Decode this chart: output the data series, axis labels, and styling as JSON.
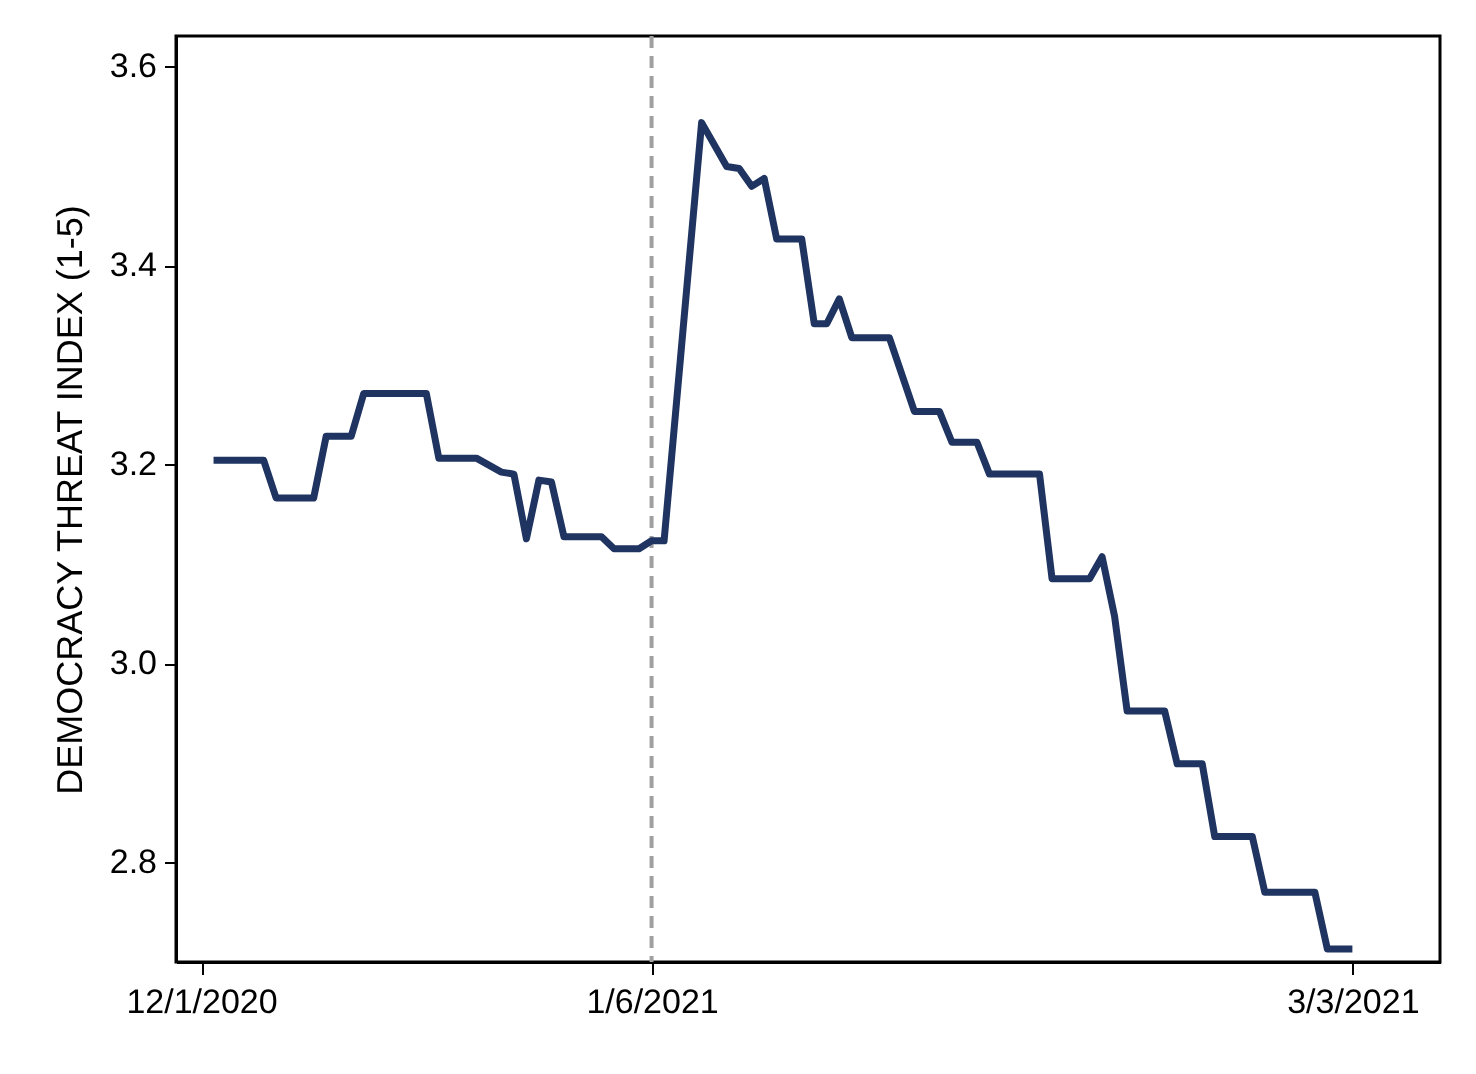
{
  "chart_data": {
    "type": "line",
    "ylabel": "DEMOCRACY THREAT INDEX (1-5)",
    "x": [
      "2020-12-02",
      "2020-12-06",
      "2020-12-07",
      "2020-12-10",
      "2020-12-11",
      "2020-12-13",
      "2020-12-14",
      "2020-12-19",
      "2020-12-20",
      "2020-12-23",
      "2020-12-25",
      "2020-12-26",
      "2020-12-27",
      "2020-12-28",
      "2020-12-29",
      "2020-12-30",
      "2021-01-02",
      "2021-01-03",
      "2021-01-05",
      "2021-01-06",
      "2021-01-07",
      "2021-01-10",
      "2021-01-12",
      "2021-01-13",
      "2021-01-14",
      "2021-01-15",
      "2021-01-16",
      "2021-01-18",
      "2021-01-19",
      "2021-01-20",
      "2021-01-21",
      "2021-01-22",
      "2021-01-25",
      "2021-01-27",
      "2021-01-29",
      "2021-01-30",
      "2021-02-01",
      "2021-02-02",
      "2021-02-06",
      "2021-02-07",
      "2021-02-10",
      "2021-02-11",
      "2021-02-12",
      "2021-02-13",
      "2021-02-16",
      "2021-02-17",
      "2021-02-19",
      "2021-02-20",
      "2021-02-23",
      "2021-02-24",
      "2021-02-28",
      "2021-03-01",
      "2021-03-03"
    ],
    "series": [
      {
        "color": "#1f3461",
        "values": [
          3.204,
          3.204,
          3.166,
          3.166,
          3.228,
          3.228,
          3.271,
          3.271,
          3.206,
          3.206,
          3.192,
          3.19,
          3.125,
          3.184,
          3.182,
          3.127,
          3.127,
          3.115,
          3.115,
          3.123,
          3.123,
          3.543,
          3.499,
          3.497,
          3.479,
          3.487,
          3.426,
          3.426,
          3.341,
          3.341,
          3.366,
          3.327,
          3.327,
          3.253,
          3.253,
          3.222,
          3.222,
          3.19,
          3.19,
          3.085,
          3.085,
          3.107,
          3.047,
          2.952,
          2.952,
          2.899,
          2.899,
          2.826,
          2.826,
          2.77,
          2.77,
          2.713,
          2.713
        ]
      }
    ],
    "xlim": [
      "2020-11-29",
      "2021-03-10"
    ],
    "xticks": [
      {
        "value": "2020-12-01",
        "label": "12/1/2020"
      },
      {
        "value": "2021-01-06",
        "label": "1/6/2021"
      },
      {
        "value": "2021-03-03",
        "label": "3/3/2021"
      }
    ],
    "ylim": [
      2.7,
      3.63
    ],
    "yticks": [
      {
        "value": 2.8,
        "label": "2.8"
      },
      {
        "value": 3.0,
        "label": "3.0"
      },
      {
        "value": 3.2,
        "label": "3.2"
      },
      {
        "value": 3.4,
        "label": "3.4"
      },
      {
        "value": 3.6,
        "label": "3.6"
      }
    ],
    "ref_lines": [
      {
        "axis": "x",
        "value": "2021-01-06",
        "color": "#a0a0a0",
        "line_style": "dashed"
      }
    ],
    "grid": false,
    "marker": "none",
    "line_style": "solid"
  }
}
